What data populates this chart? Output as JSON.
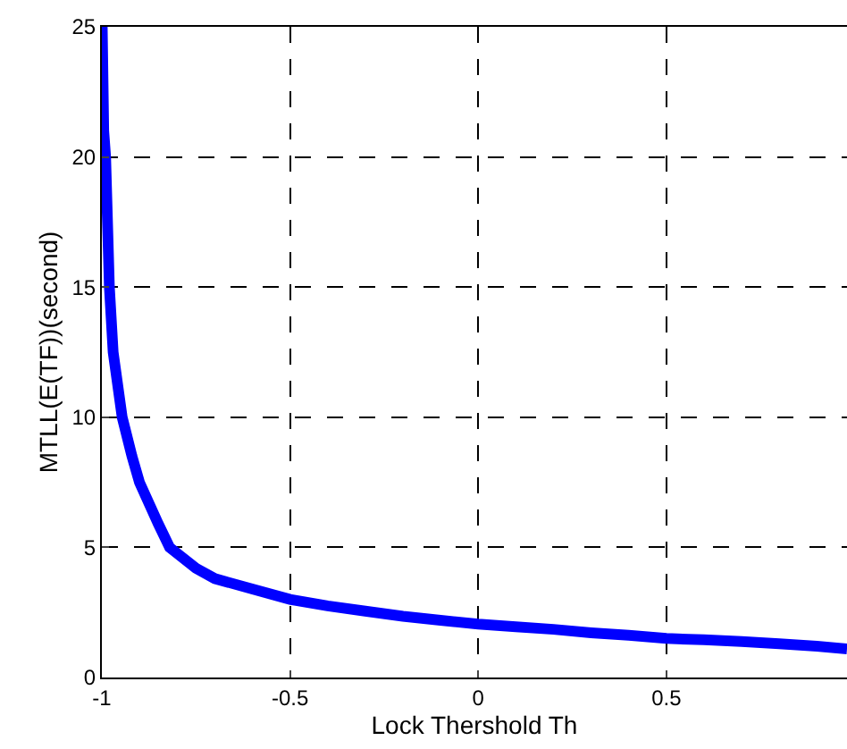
{
  "chart_data": {
    "type": "line",
    "xlabel": "Lock Thershold Th",
    "ylabel": "MTLL(E(TF))(second)",
    "x": [
      -0.999,
      -0.995,
      -0.99,
      -0.98,
      -0.97,
      -0.946,
      -0.92,
      -0.9,
      -0.85,
      -0.82,
      -0.75,
      -0.7,
      -0.6,
      -0.5,
      -0.4,
      -0.3,
      -0.2,
      -0.1,
      0,
      0.1,
      0.2,
      0.3,
      0.4,
      0.5,
      0.6,
      0.7,
      0.8,
      0.9,
      0.98
    ],
    "series": [
      {
        "color": "#0000ff",
        "values": [
          25,
          21,
          20,
          15,
          12.5,
          10,
          8.5,
          7.5,
          5.9,
          5,
          4.2,
          3.8,
          3.4,
          3.0,
          2.75,
          2.55,
          2.35,
          2.2,
          2.05,
          1.95,
          1.85,
          1.72,
          1.62,
          1.5,
          1.45,
          1.38,
          1.3,
          1.2,
          1.1
        ]
      }
    ],
    "xlim": [
      -1,
      0.98
    ],
    "xticks": [
      -1,
      -0.5,
      0,
      0.5
    ],
    "ylim": [
      0,
      25
    ],
    "yticks": [
      0,
      5,
      10,
      15,
      20,
      25
    ],
    "grid": true,
    "marker": "none",
    "line_style": "solid"
  }
}
